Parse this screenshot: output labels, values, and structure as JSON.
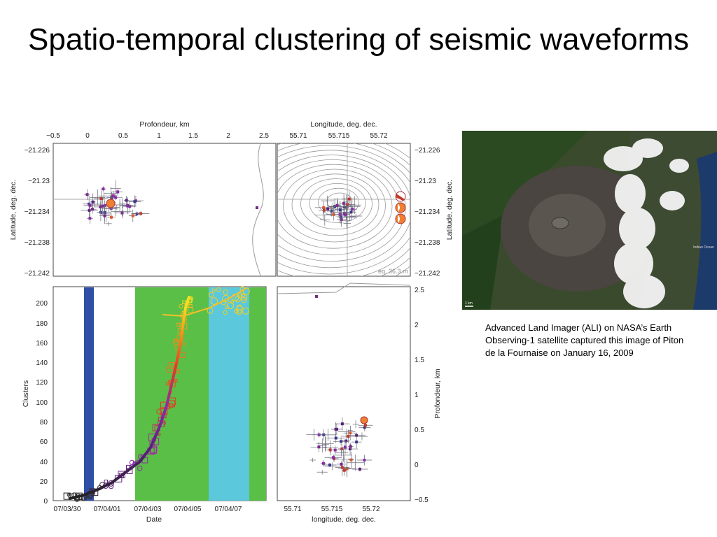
{
  "slide": {
    "title": "Spatio-temporal clustering of seismic waveforms",
    "caption": "Advanced Land Imager (ALI) on NASA’s Earth Observing-1 satellite captured this image of Piton de la Fournaise on January 16, 2009"
  },
  "figure": {
    "top_left": {
      "xlabel": "Profondeur, km",
      "ylabel": "Latitude, deg. dec.",
      "xticks": [
        "−0.5",
        "0",
        "0.5",
        "1",
        "1.5",
        "2",
        "2.5"
      ],
      "yticks": [
        "−21.226",
        "−21.23",
        "−21.234",
        "−21.238",
        "−21.242"
      ]
    },
    "top_right": {
      "xlabel": "Longitude, deg. dec.",
      "ylabel": "Latitude, deg. dec.",
      "xticks": [
        "55.71",
        "55.715",
        "55.72"
      ],
      "yticks": [
        "−21.226",
        "−21.23",
        "−21.234",
        "−21.238",
        "−21.242"
      ],
      "contour_note": "eq. 36.3 m"
    },
    "bottom_left": {
      "xlabel": "Date",
      "ylabel": "Clusters",
      "xticks": [
        "07/03/30",
        "07/04/01",
        "07/04/03",
        "07/04/05",
        "07/04/07"
      ],
      "yticks": [
        "0",
        "20",
        "40",
        "60",
        "80",
        "100",
        "120",
        "140",
        "160",
        "180",
        "200"
      ]
    },
    "bottom_right": {
      "xlabel": "longitude, deg. dec.",
      "ylabel": "Profondeur, km",
      "xticks": [
        "55.71",
        "55.715",
        "55.72"
      ],
      "yticks": [
        "2.5",
        "2",
        "1.5",
        "1",
        "0.5",
        "0",
        "−0.5"
      ]
    }
  },
  "photo": {
    "scale_label": "1 km",
    "ocean_label": "Indian Ocean"
  },
  "colors": {
    "blue_band": "#2f4fa6",
    "green_band": "#5abf46",
    "cyan_band": "#5bc8dc"
  }
}
